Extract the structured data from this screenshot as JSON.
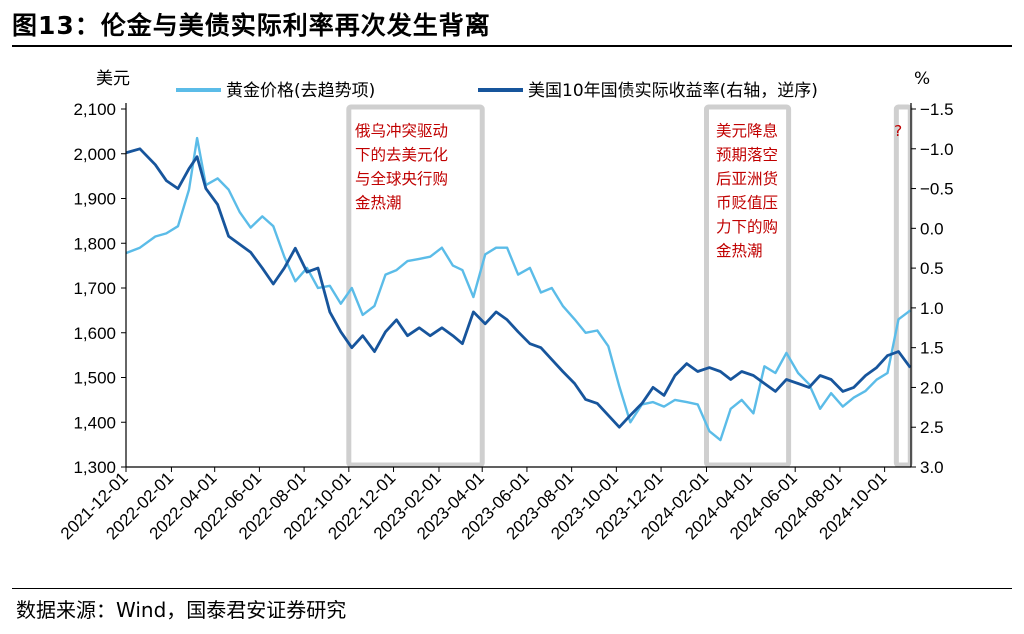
{
  "header": {
    "title": "图13：伦金与美债实际利率再次发生背离"
  },
  "footer": {
    "source": "数据来源：Wind，国泰君安证券研究"
  },
  "chart_data": {
    "type": "line",
    "left_unit": "美元",
    "right_unit": "%",
    "left_ylim": [
      1300,
      2100
    ],
    "left_ticks": [
      "1,300",
      "1,400",
      "1,500",
      "1,600",
      "1,700",
      "1,800",
      "1,900",
      "2,000",
      "2,100"
    ],
    "right_ylim_reversed": [
      -1.5,
      3.0
    ],
    "right_ticks": [
      "−1.5",
      "−1.0",
      "−0.5",
      "0.0",
      "0.5",
      "1.0",
      "1.5",
      "2.0",
      "2.5",
      "3.0"
    ],
    "x_ticks": [
      "2021-12-01",
      "2022-02-01",
      "2022-04-01",
      "2022-06-01",
      "2022-08-01",
      "2022-10-01",
      "2022-12-01",
      "2023-02-01",
      "2023-04-01",
      "2023-06-01",
      "2023-08-01",
      "2023-10-01",
      "2023-12-01",
      "2024-02-01",
      "2024-04-01",
      "2024-06-01",
      "2024-08-01",
      "2024-10-01"
    ],
    "legend": "top",
    "annotations": [
      {
        "lines": [
          "俄乌冲突驱动",
          "下的去美元化",
          "与全球央行购",
          "金热潮"
        ]
      },
      {
        "lines": [
          "美元降息",
          "预期落空",
          "后亚洲货",
          "币贬值压",
          "力下的购",
          "金热潮"
        ]
      },
      {
        "lines": [
          "?"
        ]
      }
    ],
    "highlight_ranges": [
      {
        "from": "2022-10-01",
        "to": "2023-04-01"
      },
      {
        "from": "2024-02-01",
        "to": "2024-05-23"
      },
      {
        "from": "2024-10-17",
        "to": "2024-11-05"
      }
    ],
    "series": [
      {
        "name": "黄金价格(去趋势项)",
        "axis": "left",
        "color": "#5bbce8",
        "x": [
          "2021-12-01",
          "2021-12-20",
          "2022-01-10",
          "2022-01-25",
          "2022-02-10",
          "2022-02-25",
          "2022-03-08",
          "2022-03-20",
          "2022-04-05",
          "2022-04-20",
          "2022-05-05",
          "2022-05-20",
          "2022-06-05",
          "2022-06-20",
          "2022-07-05",
          "2022-07-20",
          "2022-08-05",
          "2022-08-20",
          "2022-09-05",
          "2022-09-20",
          "2022-10-05",
          "2022-10-20",
          "2022-11-05",
          "2022-11-20",
          "2022-12-05",
          "2022-12-20",
          "2023-01-05",
          "2023-01-20",
          "2023-02-05",
          "2023-02-20",
          "2023-03-05",
          "2023-03-20",
          "2023-04-05",
          "2023-04-20",
          "2023-05-05",
          "2023-05-20",
          "2023-06-05",
          "2023-06-20",
          "2023-07-05",
          "2023-07-20",
          "2023-08-05",
          "2023-08-20",
          "2023-09-05",
          "2023-09-20",
          "2023-10-05",
          "2023-10-20",
          "2023-11-05",
          "2023-11-20",
          "2023-12-05",
          "2023-12-20",
          "2024-01-05",
          "2024-01-20",
          "2024-02-05",
          "2024-02-20",
          "2024-03-05",
          "2024-03-20",
          "2024-04-05",
          "2024-04-20",
          "2024-05-05",
          "2024-05-20",
          "2024-06-05",
          "2024-06-20",
          "2024-07-05",
          "2024-07-20",
          "2024-08-05",
          "2024-08-20",
          "2024-09-05",
          "2024-09-20",
          "2024-10-05",
          "2024-10-20",
          "2024-11-05"
        ],
        "y": [
          1778,
          1790,
          1815,
          1822,
          1838,
          1920,
          2035,
          1930,
          1945,
          1920,
          1870,
          1835,
          1860,
          1838,
          1770,
          1715,
          1745,
          1700,
          1705,
          1665,
          1700,
          1640,
          1660,
          1730,
          1740,
          1760,
          1765,
          1770,
          1790,
          1750,
          1740,
          1680,
          1775,
          1790,
          1790,
          1730,
          1745,
          1690,
          1700,
          1660,
          1630,
          1600,
          1605,
          1570,
          1480,
          1400,
          1440,
          1445,
          1435,
          1450,
          1445,
          1440,
          1380,
          1360,
          1430,
          1450,
          1420,
          1525,
          1510,
          1555,
          1510,
          1485,
          1430,
          1465,
          1435,
          1455,
          1470,
          1495,
          1510,
          1630,
          1650
        ]
      },
      {
        "name": "美国10年国债实际收益率(右轴，逆序)",
        "axis": "right",
        "color": "#17559c",
        "x": [
          "2021-12-01",
          "2021-12-20",
          "2022-01-10",
          "2022-01-25",
          "2022-02-10",
          "2022-02-25",
          "2022-03-08",
          "2022-03-20",
          "2022-04-05",
          "2022-04-20",
          "2022-05-05",
          "2022-05-20",
          "2022-06-05",
          "2022-06-20",
          "2022-07-05",
          "2022-07-20",
          "2022-08-05",
          "2022-08-20",
          "2022-09-05",
          "2022-09-20",
          "2022-10-05",
          "2022-10-20",
          "2022-11-05",
          "2022-11-20",
          "2022-12-05",
          "2022-12-20",
          "2023-01-05",
          "2023-01-20",
          "2023-02-05",
          "2023-02-20",
          "2023-03-05",
          "2023-03-20",
          "2023-04-05",
          "2023-04-20",
          "2023-05-05",
          "2023-05-20",
          "2023-06-05",
          "2023-06-20",
          "2023-07-05",
          "2023-07-20",
          "2023-08-05",
          "2023-08-20",
          "2023-09-05",
          "2023-09-20",
          "2023-10-05",
          "2023-10-20",
          "2023-11-05",
          "2023-11-20",
          "2023-12-05",
          "2023-12-20",
          "2024-01-05",
          "2024-01-20",
          "2024-02-05",
          "2024-02-20",
          "2024-03-05",
          "2024-03-20",
          "2024-04-05",
          "2024-04-20",
          "2024-05-05",
          "2024-05-20",
          "2024-06-05",
          "2024-06-20",
          "2024-07-05",
          "2024-07-20",
          "2024-08-05",
          "2024-08-20",
          "2024-09-05",
          "2024-09-20",
          "2024-10-05",
          "2024-10-20",
          "2024-11-05"
        ],
        "y": [
          -0.95,
          -1.0,
          -0.8,
          -0.6,
          -0.5,
          -0.75,
          -0.9,
          -0.5,
          -0.3,
          0.1,
          0.2,
          0.3,
          0.5,
          0.7,
          0.5,
          0.25,
          0.55,
          0.5,
          1.05,
          1.3,
          1.5,
          1.35,
          1.55,
          1.3,
          1.15,
          1.35,
          1.25,
          1.35,
          1.25,
          1.35,
          1.45,
          1.05,
          1.2,
          1.05,
          1.15,
          1.3,
          1.45,
          1.5,
          1.65,
          1.8,
          1.95,
          2.15,
          2.2,
          2.35,
          2.5,
          2.35,
          2.2,
          2.0,
          2.1,
          1.85,
          1.7,
          1.8,
          1.75,
          1.8,
          1.9,
          1.8,
          1.85,
          1.95,
          2.05,
          1.9,
          1.95,
          2.0,
          1.85,
          1.9,
          2.05,
          2.0,
          1.85,
          1.75,
          1.6,
          1.55,
          1.75
        ]
      }
    ]
  }
}
